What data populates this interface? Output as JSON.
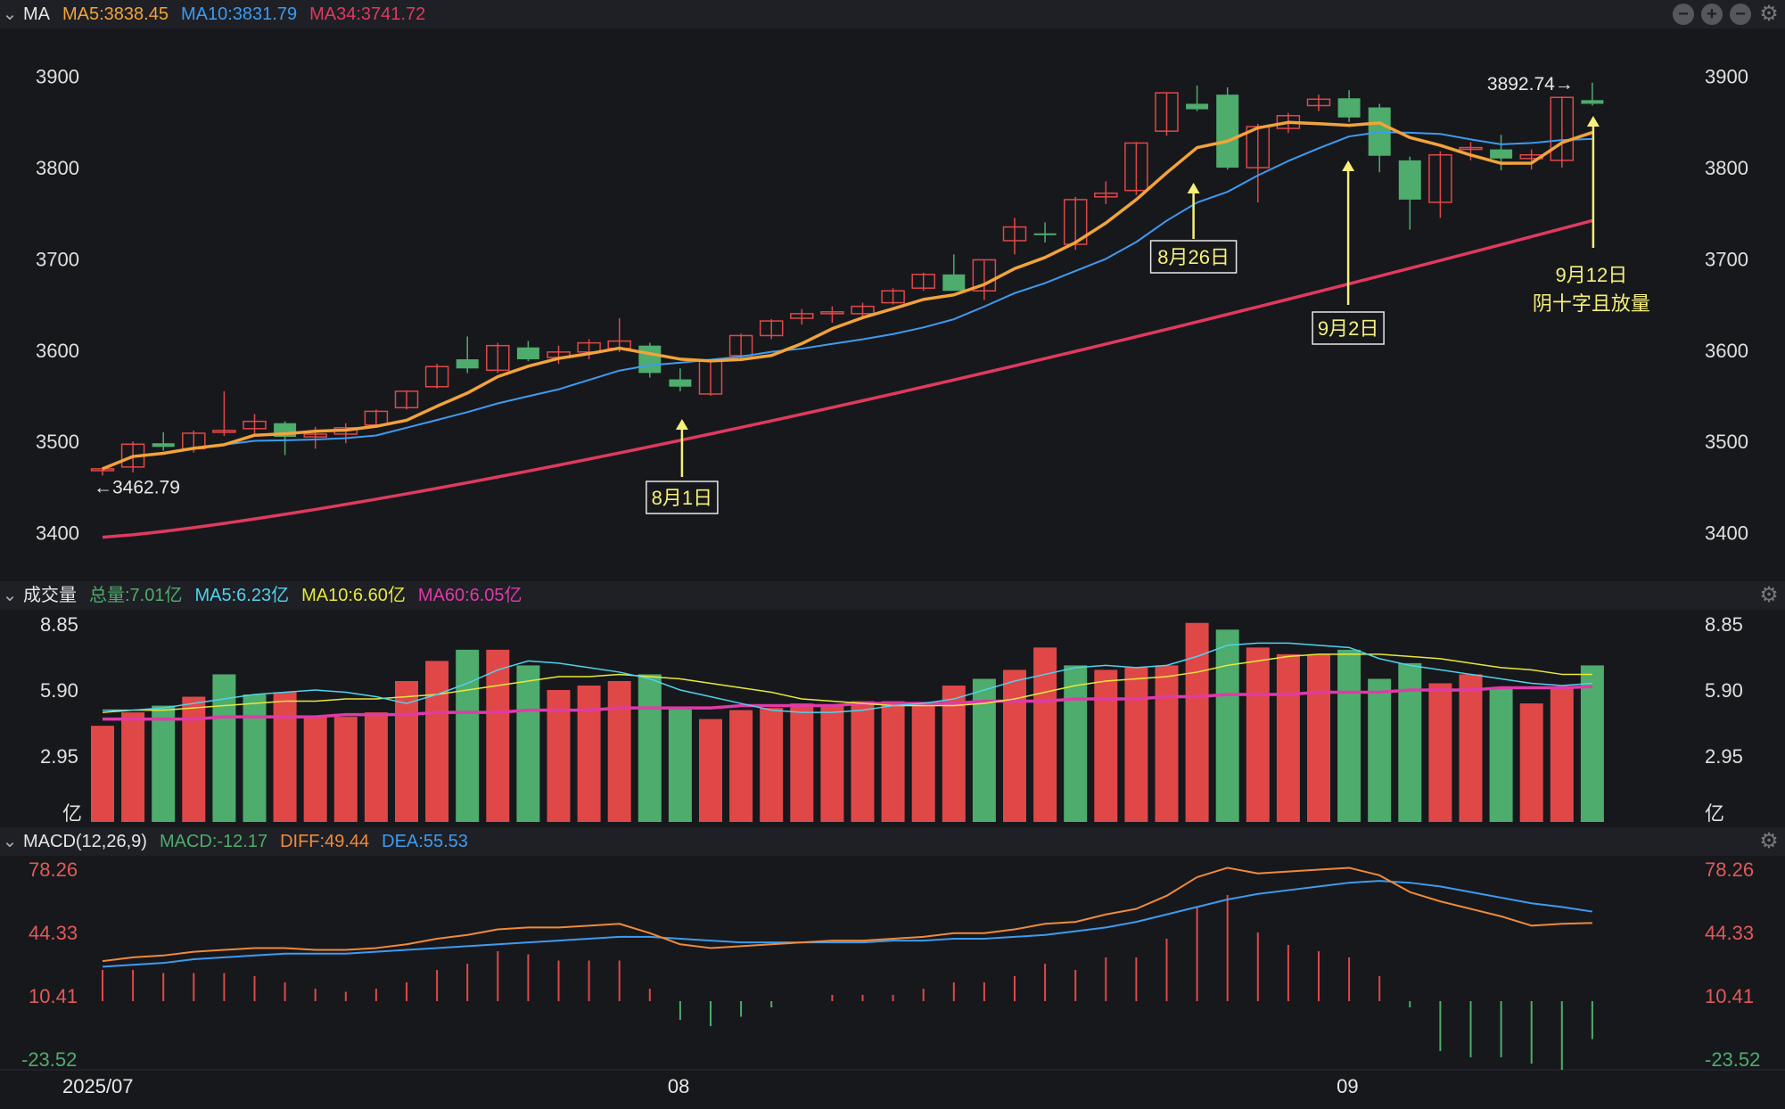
{
  "price_header": {
    "title": "MA",
    "ma5": "MA5:3838.45",
    "ma10": "MA10:3831.79",
    "ma34": "MA34:3741.72"
  },
  "volume_header": {
    "title": "成交量",
    "total": "总量:7.01亿",
    "ma5": "MA5:6.23亿",
    "ma10": "MA10:6.60亿",
    "ma60": "MA60:6.05亿"
  },
  "macd_header": {
    "title": "MACD(12,26,9)",
    "macd": "MACD:-12.17",
    "diff": "DIFF:49.44",
    "dea": "DEA:55.53"
  },
  "colors": {
    "up": "#e04848",
    "down": "#4eac6c",
    "ma5": "#f2a33a",
    "ma10": "#3e9bf0",
    "ma34": "#e03a5e",
    "vma5": "#4fd3ee",
    "vma10": "#e8e83a",
    "vma60": "#e03aa8",
    "diff": "#f08a3a",
    "dea": "#3e9bf0",
    "annot": "#f5f07a"
  },
  "chart_data": [
    {
      "type": "candlestick",
      "name": "price",
      "ylim": [
        3380,
        3930
      ],
      "y_ticks": [
        "3900",
        "3800",
        "3700",
        "3600",
        "3500",
        "3400"
      ],
      "x_ticks": [
        "2025/07",
        "08",
        "09"
      ],
      "ohlc": [
        [
          3468,
          3472,
          3462.79,
          3470
        ],
        [
          3472,
          3500,
          3466,
          3497
        ],
        [
          3498,
          3510,
          3490,
          3494
        ],
        [
          3492,
          3512,
          3488,
          3509
        ],
        [
          3510,
          3555,
          3506,
          3512
        ],
        [
          3514,
          3530,
          3508,
          3522
        ],
        [
          3520,
          3522,
          3485,
          3505
        ],
        [
          3505,
          3516,
          3492,
          3508
        ],
        [
          3508,
          3520,
          3498,
          3515
        ],
        [
          3518,
          3535,
          3515,
          3533
        ],
        [
          3537,
          3556,
          3535,
          3555
        ],
        [
          3560,
          3585,
          3558,
          3582
        ],
        [
          3590,
          3615,
          3575,
          3580
        ],
        [
          3578,
          3608,
          3575,
          3605
        ],
        [
          3603,
          3610,
          3588,
          3590
        ],
        [
          3592,
          3605,
          3585,
          3598
        ],
        [
          3598,
          3612,
          3590,
          3608
        ],
        [
          3602,
          3635,
          3598,
          3610
        ],
        [
          3605,
          3608,
          3570,
          3575
        ],
        [
          3568,
          3580,
          3555,
          3560
        ],
        [
          3552,
          3590,
          3550,
          3588
        ],
        [
          3594,
          3618,
          3588,
          3616
        ],
        [
          3616,
          3634,
          3612,
          3632
        ],
        [
          3635,
          3645,
          3628,
          3640
        ],
        [
          3640,
          3648,
          3630,
          3642
        ],
        [
          3640,
          3652,
          3635,
          3648
        ],
        [
          3652,
          3668,
          3650,
          3665
        ],
        [
          3668,
          3685,
          3665,
          3683
        ],
        [
          3683,
          3705,
          3670,
          3665
        ],
        [
          3665,
          3698,
          3655,
          3699
        ],
        [
          3720,
          3745,
          3705,
          3735
        ],
        [
          3728,
          3740,
          3718,
          3726
        ],
        [
          3716,
          3768,
          3710,
          3765
        ],
        [
          3768,
          3785,
          3760,
          3772
        ],
        [
          3775,
          3828,
          3770,
          3827
        ],
        [
          3840,
          3882,
          3835,
          3882
        ],
        [
          3870,
          3890,
          3862,
          3864
        ],
        [
          3880,
          3888,
          3798,
          3800
        ],
        [
          3800,
          3848,
          3762,
          3845
        ],
        [
          3843,
          3860,
          3838,
          3857
        ],
        [
          3868,
          3880,
          3862,
          3875
        ],
        [
          3876,
          3885,
          3850,
          3855
        ],
        [
          3866,
          3870,
          3795,
          3813
        ],
        [
          3808,
          3812,
          3732,
          3765
        ],
        [
          3762,
          3818,
          3745,
          3814
        ],
        [
          3822,
          3828,
          3808,
          3822
        ],
        [
          3820,
          3836,
          3797,
          3810
        ],
        [
          3810,
          3820,
          3798,
          3814
        ],
        [
          3808,
          3878,
          3800,
          3877
        ],
        [
          3874,
          3893,
          3868,
          3870
        ]
      ],
      "annotations": [
        {
          "label": "8月1日",
          "index": 19
        },
        {
          "label": "8月26日",
          "index": 36
        },
        {
          "label": "9月2日",
          "index": 41
        },
        {
          "label": "9月12日",
          "note": "阴十字且放量",
          "index": 49
        }
      ],
      "min_label": "←3462.79",
      "max_label": "3892.74→"
    },
    {
      "type": "bar",
      "name": "volume",
      "ylim": [
        0,
        8.85
      ],
      "y_ticks": [
        "8.85",
        "5.90",
        "2.95",
        "亿"
      ],
      "values": [
        4.3,
        4.9,
        5.2,
        5.6,
        6.6,
        5.7,
        5.8,
        4.7,
        4.7,
        4.9,
        6.3,
        7.2,
        7.7,
        7.7,
        7.0,
        5.9,
        6.1,
        6.3,
        6.6,
        5.1,
        4.6,
        5.0,
        5.1,
        5.3,
        5.2,
        5.4,
        5.4,
        5.2,
        6.1,
        6.4,
        6.8,
        7.8,
        7.0,
        6.8,
        6.9,
        7.0,
        8.9,
        8.6,
        7.8,
        7.5,
        7.5,
        7.7,
        6.4,
        7.1,
        6.2,
        6.6,
        6.0,
        5.3,
        6.0,
        7.0
      ],
      "colors": [
        "up",
        "up",
        "down",
        "up",
        "down",
        "down",
        "up",
        "up",
        "up",
        "up",
        "up",
        "up",
        "down",
        "up",
        "down",
        "up",
        "up",
        "up",
        "down",
        "down",
        "up",
        "up",
        "up",
        "up",
        "up",
        "up",
        "up",
        "up",
        "up",
        "down",
        "up",
        "up",
        "down",
        "up",
        "up",
        "up",
        "up",
        "down",
        "up",
        "up",
        "up",
        "down",
        "down",
        "down",
        "up",
        "up",
        "down",
        "up",
        "up",
        "down"
      ],
      "ma5": [
        5.0,
        5.0,
        5.1,
        5.3,
        5.5,
        5.7,
        5.8,
        5.9,
        5.8,
        5.6,
        5.3,
        5.7,
        6.2,
        6.8,
        7.2,
        7.1,
        6.9,
        6.7,
        6.4,
        5.9,
        5.6,
        5.3,
        5.0,
        4.9,
        4.9,
        5.0,
        5.2,
        5.3,
        5.5,
        5.9,
        6.3,
        6.6,
        6.9,
        7.0,
        6.9,
        7.0,
        7.4,
        7.9,
        8.0,
        8.0,
        7.9,
        7.8,
        7.3,
        7.0,
        6.8,
        6.6,
        6.4,
        6.2,
        6.1,
        6.2
      ],
      "ma10": [
        4.9,
        5.0,
        5.0,
        5.1,
        5.2,
        5.3,
        5.4,
        5.4,
        5.5,
        5.5,
        5.6,
        5.7,
        5.9,
        6.1,
        6.3,
        6.5,
        6.5,
        6.6,
        6.5,
        6.4,
        6.2,
        6.0,
        5.8,
        5.5,
        5.4,
        5.3,
        5.2,
        5.2,
        5.2,
        5.3,
        5.5,
        5.8,
        6.1,
        6.3,
        6.4,
        6.5,
        6.7,
        7.0,
        7.2,
        7.4,
        7.5,
        7.5,
        7.5,
        7.4,
        7.3,
        7.1,
        6.9,
        6.8,
        6.6,
        6.6
      ],
      "ma60": [
        4.6,
        4.6,
        4.6,
        4.6,
        4.7,
        4.7,
        4.7,
        4.7,
        4.8,
        4.8,
        4.8,
        4.9,
        4.9,
        4.9,
        5.0,
        5.0,
        5.0,
        5.1,
        5.1,
        5.1,
        5.1,
        5.2,
        5.2,
        5.2,
        5.2,
        5.3,
        5.3,
        5.3,
        5.3,
        5.4,
        5.4,
        5.4,
        5.5,
        5.5,
        5.5,
        5.6,
        5.6,
        5.7,
        5.7,
        5.7,
        5.8,
        5.8,
        5.8,
        5.9,
        5.9,
        5.9,
        6.0,
        6.0,
        6.0,
        6.05
      ]
    },
    {
      "type": "line",
      "name": "macd",
      "ylim": [
        -23.52,
        78.26
      ],
      "y_ticks": [
        "78.26",
        "44.33",
        "10.41",
        "-23.52"
      ],
      "diff": [
        29,
        31,
        32,
        34,
        35,
        36,
        36,
        35,
        35,
        36,
        38,
        41,
        43,
        46,
        47,
        47,
        48,
        49,
        44,
        38,
        36,
        37,
        38,
        39,
        40,
        40,
        41,
        42,
        44,
        44,
        46,
        49,
        50,
        54,
        57,
        64,
        74,
        79,
        76,
        77,
        78,
        79,
        75,
        66,
        61,
        57,
        53,
        48,
        49,
        49.44
      ],
      "dea": [
        26,
        27,
        28,
        30,
        31,
        32,
        33,
        33,
        33,
        34,
        35,
        36,
        37,
        38,
        39,
        40,
        41,
        42,
        42,
        41,
        40,
        39,
        39,
        39,
        39,
        39,
        40,
        40,
        41,
        41,
        42,
        43,
        45,
        47,
        50,
        54,
        58,
        62,
        65,
        67,
        69,
        71,
        72,
        71,
        69,
        66,
        63,
        60,
        58,
        55.53
      ],
      "hist": [
        10,
        10,
        9,
        9,
        9,
        8,
        6,
        4,
        3,
        4,
        6,
        10,
        12,
        16,
        15,
        13,
        13,
        13,
        4,
        -6,
        -8,
        -5,
        -2,
        0,
        2,
        2,
        2,
        4,
        6,
        6,
        8,
        12,
        10,
        14,
        14,
        20,
        30,
        34,
        22,
        18,
        16,
        14,
        8,
        -2,
        -16,
        -18,
        -18,
        -20,
        -22,
        -12.17
      ]
    }
  ]
}
